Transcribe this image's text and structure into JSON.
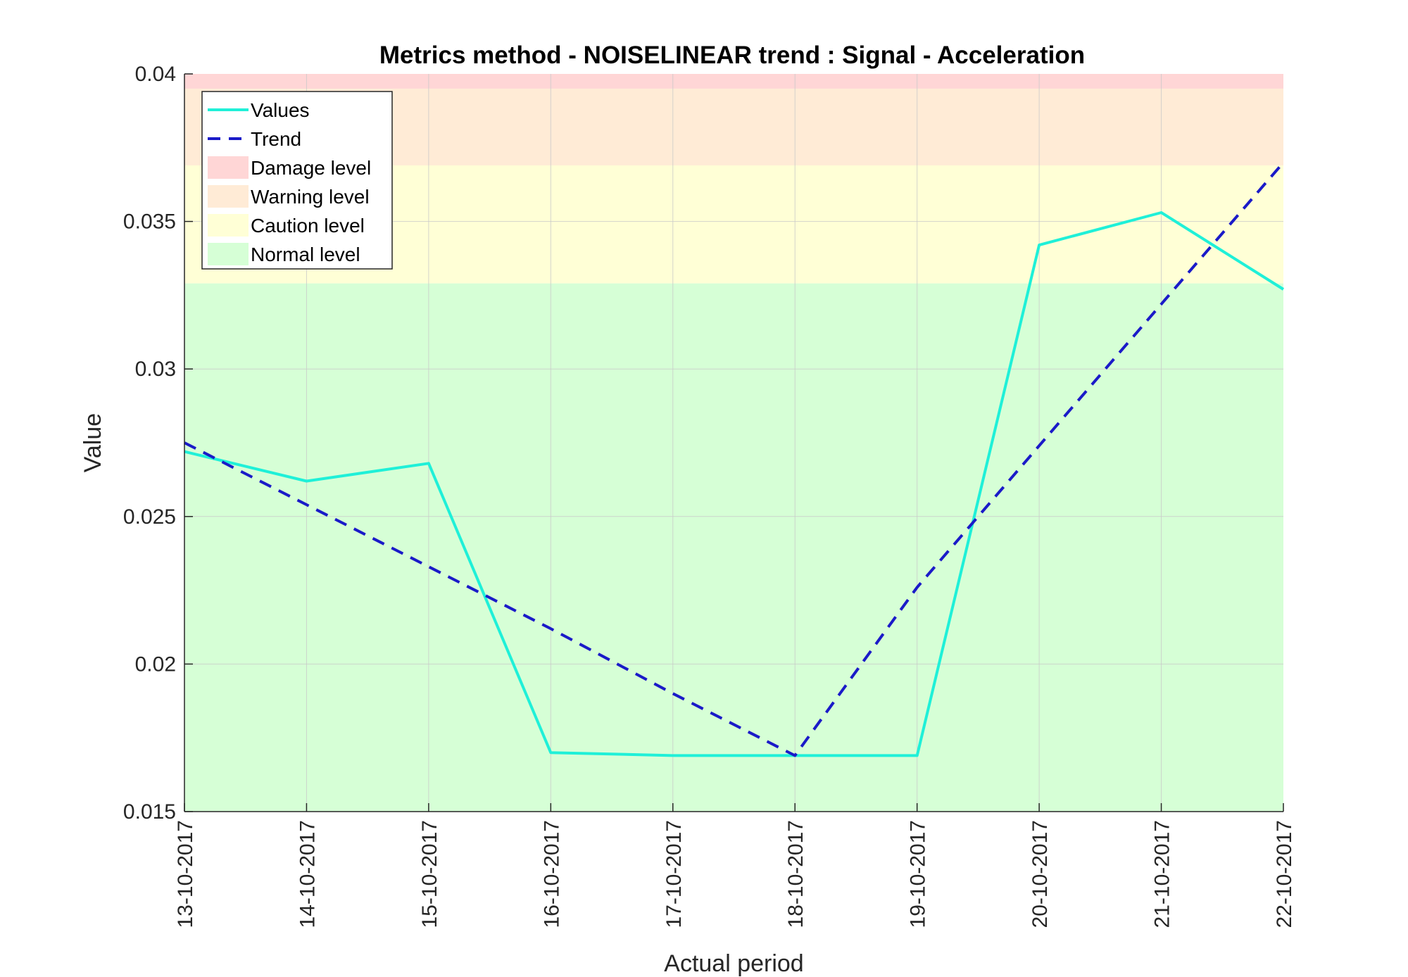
{
  "chart_data": {
    "type": "line",
    "title": "Metrics method - NOISELINEAR trend : Signal - Acceleration",
    "xlabel": "Actual period",
    "ylabel": "Value",
    "categories": [
      "13-10-2017",
      "14-10-2017",
      "15-10-2017",
      "16-10-2017",
      "17-10-2017",
      "18-10-2017",
      "19-10-2017",
      "20-10-2017",
      "21-10-2017",
      "22-10-2017"
    ],
    "ylim": [
      0.015,
      0.04
    ],
    "yticks": [
      0.015,
      0.02,
      0.025,
      0.03,
      0.035,
      0.04
    ],
    "ytick_labels": [
      "0.015",
      "0.02",
      "0.025",
      "0.03",
      "0.035",
      "0.04"
    ],
    "grid": true,
    "legend_position": "top-left",
    "series": [
      {
        "name": "Values",
        "style": "solid",
        "color": "#1ff0d8",
        "values": [
          0.0272,
          0.0262,
          0.0268,
          0.017,
          0.0169,
          0.0169,
          0.0169,
          0.0342,
          0.0353,
          0.0327
        ]
      },
      {
        "name": "Trend",
        "style": "dashed",
        "color": "#1a1ac8",
        "values": [
          0.0275,
          0.0254,
          0.0233,
          0.0212,
          0.019,
          0.0169,
          0.0226,
          0.0274,
          0.0322,
          0.037
        ]
      }
    ],
    "bands": [
      {
        "name": "Damage level",
        "from": 0.0395,
        "to": 0.04,
        "color": "#ffd6d6"
      },
      {
        "name": "Warning level",
        "from": 0.0369,
        "to": 0.0395,
        "color": "#ffebd6"
      },
      {
        "name": "Caution level",
        "from": 0.0329,
        "to": 0.0369,
        "color": "#ffffd6"
      },
      {
        "name": "Normal level",
        "from": 0.015,
        "to": 0.0329,
        "color": "#d6ffd6"
      }
    ],
    "legend_order": [
      "Values",
      "Trend",
      "Damage level",
      "Warning level",
      "Caution level",
      "Normal level"
    ]
  }
}
